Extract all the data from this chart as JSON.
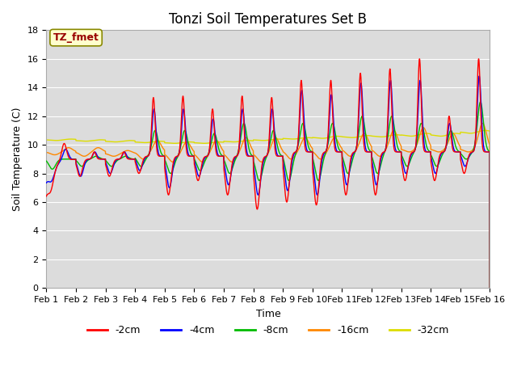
{
  "title": "Tonzi Soil Temperatures Set B",
  "xlabel": "Time",
  "ylabel": "Soil Temperature (C)",
  "ylim": [
    0,
    18
  ],
  "yticks": [
    0,
    2,
    4,
    6,
    8,
    10,
    12,
    14,
    16,
    18
  ],
  "xlim": [
    0,
    15
  ],
  "xtick_labels": [
    "Feb 1",
    "Feb 2",
    "Feb 3",
    "Feb 4",
    "Feb 5",
    "Feb 6",
    "Feb 7",
    "Feb 8",
    "Feb 9",
    "Feb 10",
    "Feb 11",
    "Feb 12",
    "Feb 13",
    "Feb 14",
    "Feb 15",
    "Feb 16"
  ],
  "annotation_text": "TZ_fmet",
  "annotation_color": "#990000",
  "annotation_bg": "#ffffcc",
  "series_colors": [
    "#ff0000",
    "#0000ff",
    "#00bb00",
    "#ff8800",
    "#dddd00"
  ],
  "series_labels": [
    "-2cm",
    "-4cm",
    "-8cm",
    "-16cm",
    "-32cm"
  ],
  "bg_color": "#dcdcdc",
  "grid_color": "#ffffff",
  "title_fontsize": 12,
  "axis_fontsize": 9,
  "tick_fontsize": 8
}
